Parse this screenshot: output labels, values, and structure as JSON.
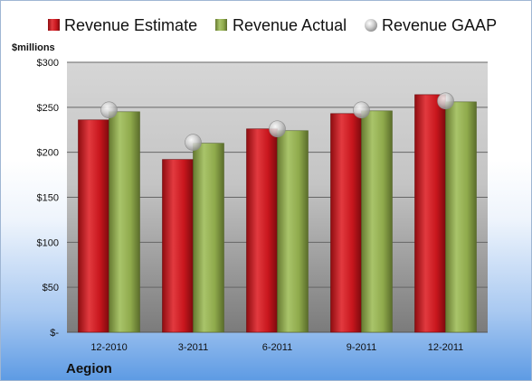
{
  "chart_data": {
    "type": "bar",
    "categories": [
      "12-2010",
      "3-2011",
      "6-2011",
      "9-2011",
      "12-2011"
    ],
    "series": [
      {
        "name": "Revenue Estimate",
        "kind": "bar",
        "color": "#c8161d",
        "values": [
          236,
          192,
          226,
          243,
          264
        ]
      },
      {
        "name": "Revenue Actual",
        "kind": "bar",
        "color": "#8faa4c",
        "values": [
          245,
          210,
          224,
          246,
          256
        ]
      },
      {
        "name": "Revenue GAAP",
        "kind": "marker",
        "color": "#b5b5b5",
        "values": [
          247,
          211,
          226,
          247,
          257
        ]
      }
    ],
    "ylabel": "$millions",
    "ylim": [
      0,
      300
    ],
    "yticks": [
      0,
      50,
      100,
      150,
      200,
      250,
      300
    ],
    "ytick_labels": [
      "$-",
      "$50",
      "$100",
      "$150",
      "$200",
      "$250",
      "$300"
    ],
    "grid": true,
    "legend_position": "top"
  },
  "company": "Aegion"
}
